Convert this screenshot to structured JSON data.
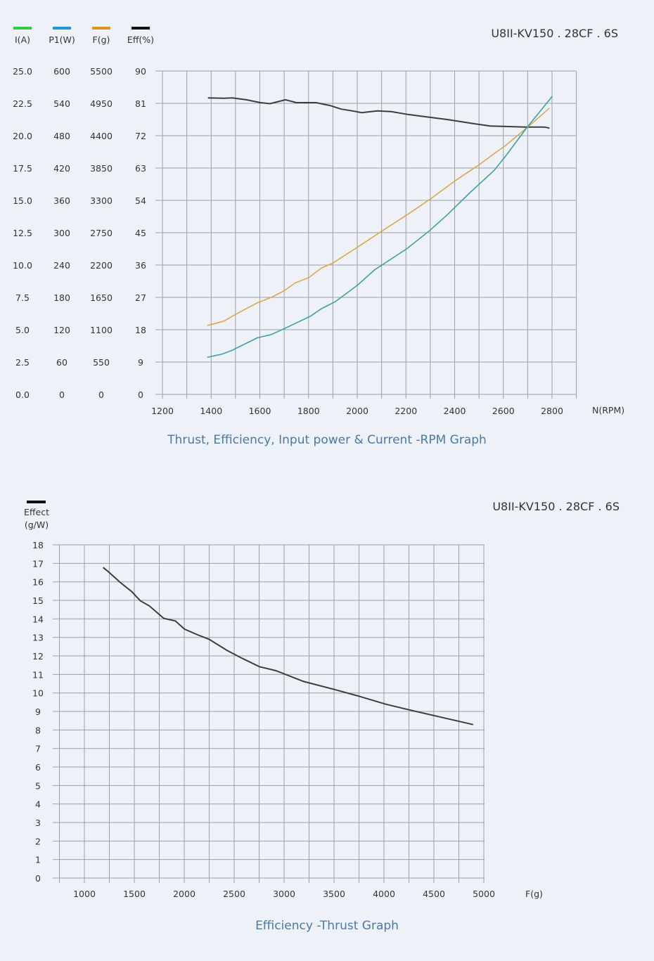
{
  "chart_data": [
    {
      "type": "line",
      "title": "U8II-KV150 . 28CF . 6S",
      "caption": "Thrust, Efficiency, Input power & Current -RPM Graph",
      "xlabel": "N(RPM)",
      "x_ticks": [
        "1200",
        "1400",
        "1600",
        "1800",
        "2000",
        "2200",
        "2400",
        "2600",
        "2800"
      ],
      "xlim": [
        1200,
        2900
      ],
      "grid": true,
      "legend_position": "top-left",
      "y_axes": [
        {
          "label": "I(A)",
          "color": "#2ecc40",
          "ticks": [
            "25.0",
            "22.5",
            "20.0",
            "17.5",
            "15.0",
            "12.5",
            "10.0",
            "7.5",
            "5.0",
            "2.5",
            "0.0"
          ],
          "ylim": [
            0,
            25
          ]
        },
        {
          "label": "P1(W)",
          "color": "#1a9ad6",
          "ticks": [
            "600",
            "540",
            "480",
            "420",
            "360",
            "300",
            "240",
            "180",
            "120",
            "60",
            "0"
          ],
          "ylim": [
            0,
            600
          ]
        },
        {
          "label": "F(g)",
          "color": "#d9961a",
          "ticks": [
            "5500",
            "4950",
            "4400",
            "3850",
            "3300",
            "2750",
            "2200",
            "1650",
            "1100",
            "550",
            "0"
          ],
          "ylim": [
            0,
            5500
          ]
        },
        {
          "label": "Eff(%)",
          "color": "#111111",
          "ticks": [
            "90",
            "81",
            "72",
            "63",
            "54",
            "45",
            "36",
            "27",
            "18",
            "9",
            "0"
          ],
          "ylim": [
            0,
            90
          ]
        }
      ],
      "series": [
        {
          "name": "Eff(%)",
          "axis": "Eff(%)",
          "color": "#3d3d3d",
          "x": [
            1387,
            1453,
            1487,
            1544,
            1602,
            1642,
            1705,
            1750,
            1831,
            1888,
            1934,
            1979,
            2019,
            2082,
            2140,
            2208,
            2254,
            2369,
            2483,
            2546,
            2597,
            2689,
            2769,
            2790
          ],
          "y": [
            82.5,
            82.4,
            82.5,
            82.0,
            81.2,
            80.9,
            82.0,
            81.2,
            81.2,
            80.4,
            79.4,
            78.9,
            78.4,
            78.9,
            78.7,
            77.9,
            77.5,
            76.5,
            75.3,
            74.7,
            74.6,
            74.4,
            74.4,
            74.1
          ]
        },
        {
          "name": "F(g)",
          "axis": "F(g)",
          "color": "#d9a84a",
          "x": [
            1384,
            1453,
            1499,
            1590,
            1647,
            1699,
            1745,
            1802,
            1853,
            1899,
            2014,
            2105,
            2208,
            2300,
            2403,
            2504,
            2563,
            2609,
            2700,
            2790
          ],
          "y": [
            1170,
            1247,
            1358,
            1558,
            1650,
            1760,
            1896,
            1988,
            2150,
            2231,
            2538,
            2788,
            3063,
            3323,
            3636,
            3915,
            4096,
            4233,
            4546,
            4870
          ]
        },
        {
          "name": "P1(W)",
          "axis": "P1(W)",
          "color": "#3aa0a8",
          "x": [
            1384,
            1447,
            1487,
            1590,
            1647,
            1705,
            1808,
            1853,
            1910,
            2002,
            2071,
            2203,
            2300,
            2369,
            2460,
            2563,
            2609,
            2700,
            2801
          ],
          "y": [
            68.7,
            75,
            82,
            105,
            111,
            123,
            145,
            159,
            172,
            203,
            231,
            270,
            305,
            333,
            373,
            416,
            442,
            497,
            553
          ]
        }
      ]
    },
    {
      "type": "line",
      "title": "U8II-KV150 . 28CF . 6S",
      "caption": "Efficiency -Thrust Graph",
      "xlabel": "F(g)",
      "ylabel_line1": "Effect",
      "ylabel_line2": "(g/W)",
      "legend_color": "#111111",
      "x_ticks": [
        "1000",
        "1500",
        "2000",
        "2500",
        "3000",
        "3500",
        "4000",
        "4500",
        "5000"
      ],
      "y_ticks": [
        "18",
        "17",
        "16",
        "15",
        "14",
        "13",
        "12",
        "11",
        "10",
        "9",
        "8",
        "7",
        "6",
        "5",
        "4",
        "3",
        "2",
        "1",
        "0"
      ],
      "xlim": [
        750,
        5000
      ],
      "ylim": [
        0,
        18
      ],
      "grid": true,
      "series": [
        {
          "color": "#3d3d3d",
          "x": [
            1187,
            1240,
            1361,
            1477,
            1560,
            1651,
            1795,
            1911,
            2003,
            2125,
            2248,
            2431,
            2584,
            2752,
            2920,
            3196,
            3502,
            3746,
            4021,
            4266,
            4572,
            4893
          ],
          "y": [
            16.78,
            16.55,
            15.96,
            15.46,
            14.98,
            14.7,
            14.03,
            13.89,
            13.45,
            13.16,
            12.9,
            12.29,
            11.86,
            11.42,
            11.2,
            10.62,
            10.19,
            9.83,
            9.39,
            9.07,
            8.69,
            8.29
          ]
        }
      ]
    }
  ]
}
